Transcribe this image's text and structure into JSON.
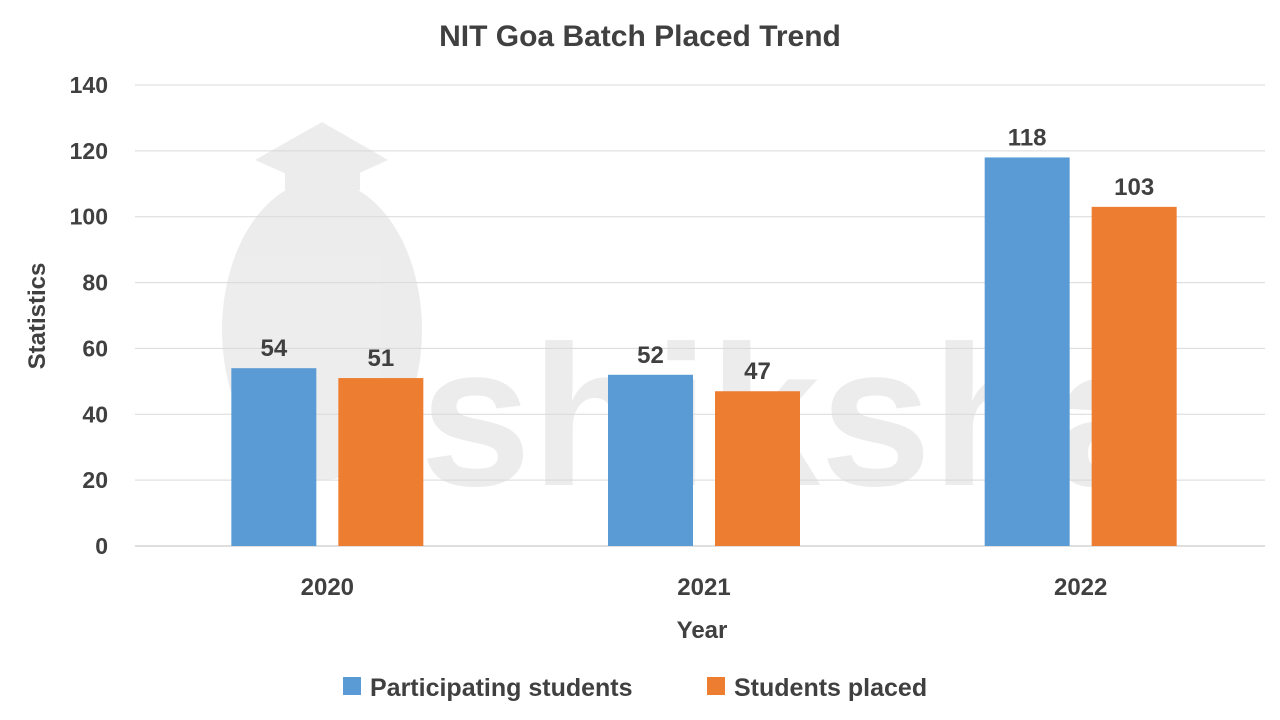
{
  "chart_data": {
    "type": "bar",
    "title": "NIT Goa Batch Placed Trend",
    "xlabel": "Year",
    "ylabel": "Statistics",
    "categories": [
      "2020",
      "2021",
      "2022"
    ],
    "series": [
      {
        "name": "Participating students",
        "color": "#5B9BD5",
        "values": [
          54,
          52,
          118
        ]
      },
      {
        "name": "Students placed",
        "color": "#ED7D31",
        "values": [
          51,
          47,
          103
        ]
      }
    ],
    "ylim": [
      0,
      140
    ],
    "yticks": [
      0,
      20,
      40,
      60,
      80,
      100,
      120,
      140
    ],
    "grid": true,
    "legend_position": "bottom",
    "data_labels": true
  },
  "watermark": "shiksha"
}
